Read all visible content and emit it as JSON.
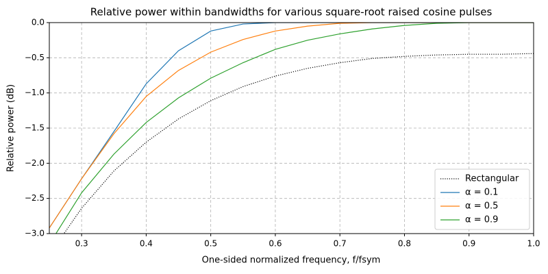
{
  "chart_data": {
    "type": "line",
    "title": "Relative power within bandwidths for various square-root raised cosine pulses",
    "xlabel": "One-sided normalized frequency, f/fsym",
    "ylabel": "Relative power (dB)",
    "x": [
      0.25,
      0.3,
      0.35,
      0.4,
      0.45,
      0.5,
      0.55,
      0.6,
      0.65,
      0.7,
      0.75,
      0.8,
      0.85,
      0.9,
      0.95,
      1.0
    ],
    "series": [
      {
        "name": "Rectangular",
        "color": "#000000",
        "linestyle": "dotted",
        "values": [
          -3.3,
          -2.64,
          -2.11,
          -1.7,
          -1.37,
          -1.11,
          -0.91,
          -0.76,
          -0.65,
          -0.57,
          -0.51,
          -0.48,
          -0.46,
          -0.45,
          -0.45,
          -0.44
        ]
      },
      {
        "name": "α = 0.1",
        "color": "#1f77b4",
        "linestyle": "solid",
        "values": [
          -2.92,
          -2.22,
          -1.55,
          -0.87,
          -0.4,
          -0.12,
          -0.02,
          0,
          0,
          0,
          0,
          0,
          0,
          0,
          0,
          0
        ]
      },
      {
        "name": "α = 0.5",
        "color": "#ff7f0e",
        "linestyle": "solid",
        "values": [
          -2.92,
          -2.22,
          -1.58,
          -1.05,
          -0.68,
          -0.42,
          -0.24,
          -0.12,
          -0.05,
          -0.01,
          0,
          0,
          0,
          0,
          0,
          0
        ]
      },
      {
        "name": "α = 0.9",
        "color": "#2ca02c",
        "linestyle": "solid",
        "values": [
          -3.15,
          -2.42,
          -1.87,
          -1.42,
          -1.07,
          -0.79,
          -0.57,
          -0.38,
          -0.25,
          -0.16,
          -0.09,
          -0.04,
          -0.01,
          0,
          0,
          0
        ]
      }
    ],
    "xlim": [
      0.25,
      1.0
    ],
    "ylim": [
      -3.0,
      0.0
    ],
    "xticks": [
      0.3,
      0.4,
      0.5,
      0.6,
      0.7,
      0.8,
      0.9,
      {
        "value": 1.0,
        "label": "1.0"
      }
    ],
    "yticks": [
      {
        "value": 0,
        "label": "0.0"
      },
      {
        "value": -0.5,
        "label": "−0.5"
      },
      {
        "value": -1.0,
        "label": "−1.0"
      },
      {
        "value": -1.5,
        "label": "−1.5"
      },
      {
        "value": -2.0,
        "label": "−2.0"
      },
      {
        "value": -2.5,
        "label": "−2.5"
      },
      {
        "value": -3.0,
        "label": "−3.0"
      }
    ],
    "grid": true,
    "legend_loc": "lower right"
  }
}
